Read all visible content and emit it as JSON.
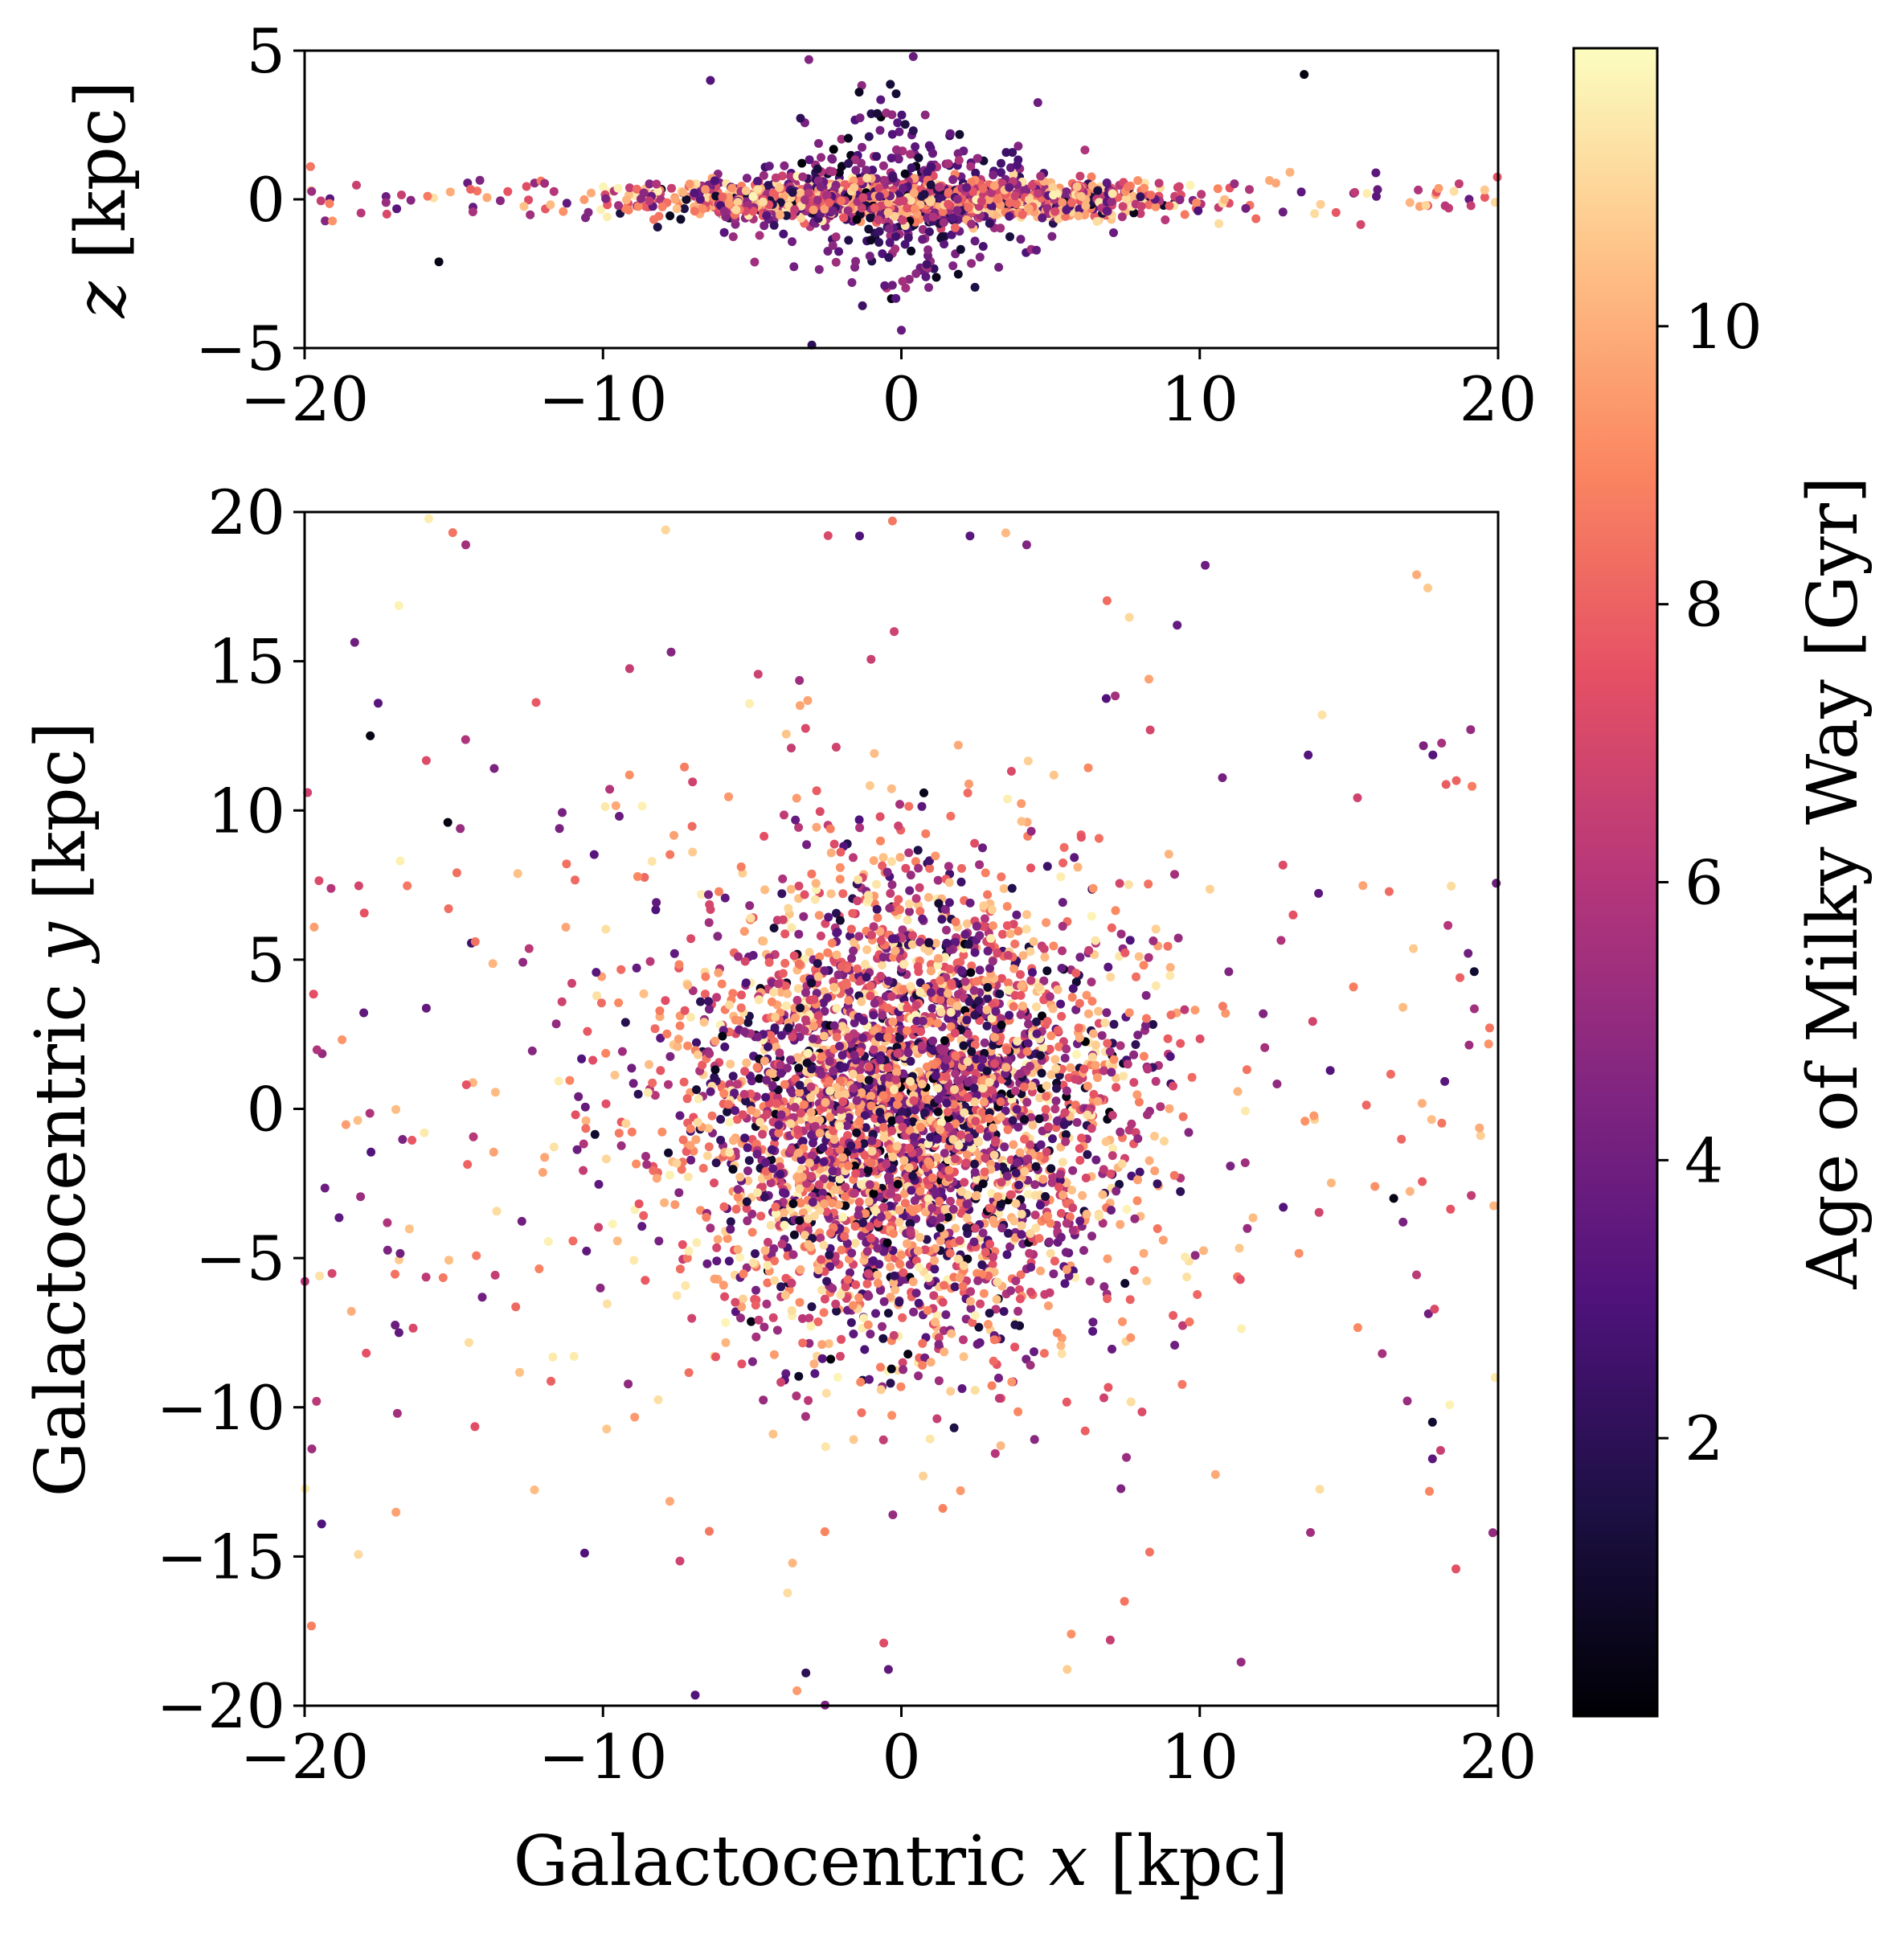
{
  "chart_data": [
    {
      "id": "top",
      "type": "scatter",
      "xlabel_parts": [],
      "ylabel_parts": [
        {
          "t": "z",
          "i": true
        },
        {
          "t": " [kpc]",
          "i": false
        }
      ],
      "xlim": [
        -20,
        20
      ],
      "ylim": [
        -5,
        5
      ],
      "xticks": [
        -20,
        -10,
        0,
        10,
        20
      ],
      "yticks": [
        -5,
        0,
        5
      ],
      "xtick_labels": [
        "−20",
        "−10",
        "0",
        "10",
        "20"
      ],
      "ytick_labels": [
        "−5",
        "0",
        "5"
      ],
      "generator": {
        "seed": 20240611,
        "n_disk": 2000,
        "n_halo": 130,
        "disk_xy_sigma": 4.0,
        "z_thin_sigma": 0.3,
        "z_thick_sigma": 1.3
      },
      "points": [
        {
          "x": -3.1,
          "y": 4.7,
          "c": 4.5
        },
        {
          "x": 0.4,
          "y": 4.8,
          "c": 3.8
        },
        {
          "x": 13.5,
          "y": 4.2,
          "c": 0.3
        },
        {
          "x": -6.4,
          "y": 4.0,
          "c": 3.2
        },
        {
          "x": -15.5,
          "y": -2.1,
          "c": 0.4
        },
        {
          "x": -3.0,
          "y": -4.9,
          "c": 2.0
        },
        {
          "x": 0.0,
          "y": -4.4,
          "c": 3.7
        },
        {
          "x": -19.8,
          "y": 1.1,
          "c": 8.5
        },
        {
          "x": 19.9,
          "y": -0.1,
          "c": 11.0
        }
      ]
    },
    {
      "id": "main",
      "type": "scatter",
      "xlabel_parts": [
        {
          "t": "Galactocentric ",
          "i": false
        },
        {
          "t": "x",
          "i": true
        },
        {
          "t": " [kpc]",
          "i": false
        }
      ],
      "ylabel_parts": [
        {
          "t": "Galactocentric ",
          "i": false
        },
        {
          "t": "y",
          "i": true
        },
        {
          "t": " [kpc]",
          "i": false
        }
      ],
      "xlim": [
        -20,
        20
      ],
      "ylim": [
        -20,
        20
      ],
      "xticks": [
        -20,
        -10,
        0,
        10,
        20
      ],
      "yticks": [
        -20,
        -15,
        -10,
        -5,
        0,
        5,
        10,
        15,
        20
      ],
      "xtick_labels": [
        "−20",
        "−10",
        "0",
        "10",
        "20"
      ],
      "ytick_labels": [
        "−20",
        "−15",
        "−10",
        "−5",
        "0",
        "5",
        "10",
        "15",
        "20"
      ],
      "generator": {
        "seed": 987654,
        "n_disk": 3600,
        "n_halo": 420,
        "disk_xy_sigma": 3.9,
        "halo_xy_sigma": 9.5
      },
      "points": [
        {
          "x": -14.6,
          "y": 18.9,
          "c": 5.5
        },
        {
          "x": -7.9,
          "y": 19.4,
          "c": 11.0
        },
        {
          "x": -1.4,
          "y": 19.2,
          "c": 3.0
        },
        {
          "x": -0.3,
          "y": 19.7,
          "c": 8.6
        },
        {
          "x": 2.3,
          "y": 19.2,
          "c": 3.3
        },
        {
          "x": 3.5,
          "y": 19.3,
          "c": 10.3
        },
        {
          "x": 4.2,
          "y": 18.9,
          "c": 4.5
        },
        {
          "x": -17.8,
          "y": 12.5,
          "c": 0.4
        },
        {
          "x": -15.2,
          "y": 9.6,
          "c": 0.3
        },
        {
          "x": 18.6,
          "y": 11.0,
          "c": 8.0
        },
        {
          "x": 14.1,
          "y": 13.2,
          "c": 11.3
        },
        {
          "x": -19.9,
          "y": 10.6,
          "c": 6.8
        },
        {
          "x": 19.2,
          "y": 4.6,
          "c": 1.0
        },
        {
          "x": 19.1,
          "y": -2.9,
          "c": 6.4
        },
        {
          "x": 19.9,
          "y": -9.0,
          "c": 11.5
        },
        {
          "x": -19.5,
          "y": -5.6,
          "c": 11.3
        },
        {
          "x": -19.6,
          "y": -9.8,
          "c": 6.2
        },
        {
          "x": -3.5,
          "y": -19.5,
          "c": 9.5
        },
        {
          "x": -3.2,
          "y": -18.9,
          "c": 2.0
        },
        {
          "x": 7.0,
          "y": -17.8,
          "c": 6.5
        },
        {
          "x": 16.5,
          "y": -3.0,
          "c": 0.4
        },
        {
          "x": 17.8,
          "y": -10.5,
          "c": 1.0
        }
      ]
    }
  ],
  "colorbar": {
    "label": "Age of Milky Way [Gyr]",
    "range": [
      0,
      12
    ],
    "ticks": [
      2,
      4,
      6,
      8,
      10
    ],
    "tick_labels": [
      "2",
      "4",
      "6",
      "8",
      "10"
    ],
    "colormap": "magma",
    "stops": [
      "#000004",
      "#1c1044",
      "#4f127b",
      "#812581",
      "#b5367a",
      "#e55064",
      "#fb8761",
      "#fec287",
      "#fcfdbf"
    ]
  }
}
